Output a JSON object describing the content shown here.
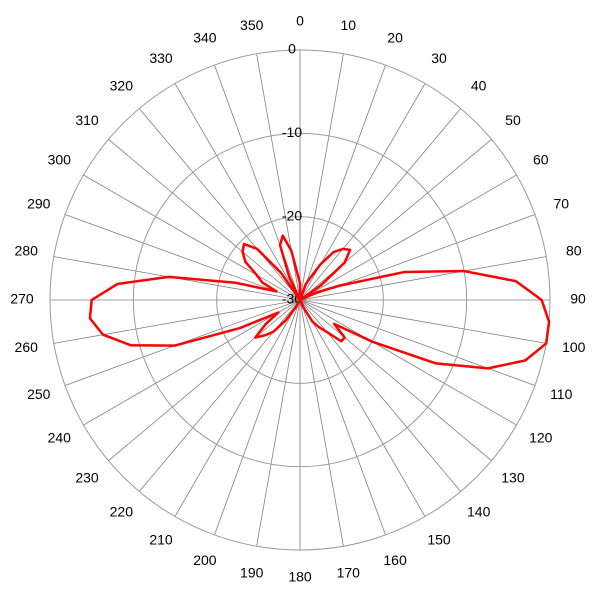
{
  "chart_data": {
    "type": "polar",
    "direction": "clockwise",
    "zero": "top",
    "rlim": [
      -30,
      0
    ],
    "rticks": [
      0,
      -10,
      -20,
      -30
    ],
    "thetaticks": [
      0,
      10,
      20,
      30,
      40,
      50,
      60,
      70,
      80,
      90,
      100,
      110,
      120,
      130,
      140,
      150,
      160,
      170,
      180,
      190,
      200,
      210,
      220,
      230,
      240,
      250,
      260,
      270,
      280,
      290,
      300,
      310,
      320,
      330,
      340,
      350
    ],
    "theta": [
      0,
      5,
      10,
      15,
      20,
      25,
      30,
      35,
      40,
      45,
      50,
      55,
      60,
      65,
      70,
      75,
      80,
      85,
      90,
      95,
      100,
      105,
      110,
      115,
      120,
      125,
      130,
      135,
      140,
      145,
      150,
      155,
      160,
      165,
      170,
      175,
      180,
      185,
      190,
      195,
      200,
      205,
      210,
      215,
      220,
      225,
      230,
      235,
      240,
      245,
      250,
      255,
      260,
      265,
      270,
      275,
      280,
      285,
      290,
      295,
      300,
      305,
      310,
      315,
      320,
      325,
      330,
      335,
      340,
      345,
      350,
      355
    ],
    "color": "#ff0000",
    "values": [
      -28,
      -30,
      -30,
      -30,
      -28,
      -27,
      -25,
      -23,
      -22,
      -21.5,
      -23,
      -27,
      -30,
      -28,
      -25,
      -17,
      -10,
      -4,
      -1,
      0,
      0,
      -2,
      -6,
      -12,
      -20,
      -25,
      -23,
      -23,
      -25,
      -26,
      -27,
      -29,
      -30,
      -30,
      -30,
      -30,
      -30,
      -30,
      -30,
      -30,
      -30,
      -30,
      -29,
      -27,
      -25,
      -24,
      -23,
      -25,
      -27,
      -22,
      -14,
      -9,
      -6,
      -4.7,
      -5,
      -8,
      -14,
      -22,
      -27,
      -25,
      -24,
      -22,
      -21,
      -20.5,
      -22,
      -26,
      -30,
      -27,
      -23,
      -22,
      -24,
      -27
    ]
  }
}
